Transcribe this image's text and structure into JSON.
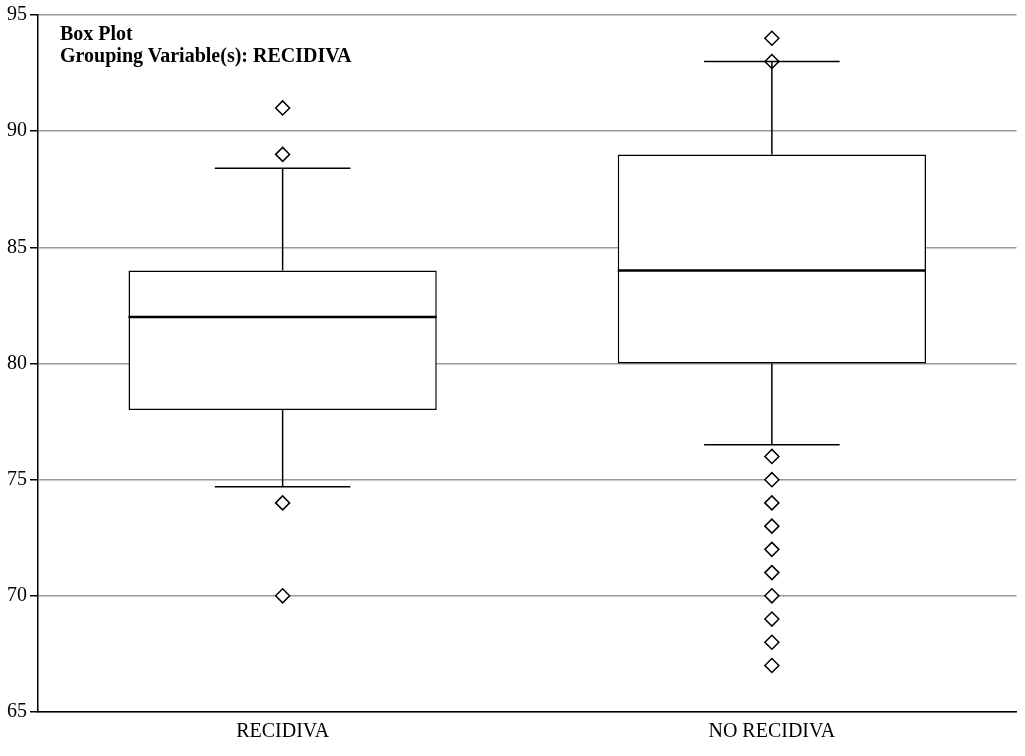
{
  "chart_data": {
    "type": "box",
    "title": "Box Plot",
    "subtitle": "Grouping Variable(s): RECIDIVA",
    "categories": [
      "RECIDIVA",
      "NO RECIDIVA"
    ],
    "boxes": [
      {
        "low": 74.7,
        "q1": 78,
        "median": 82,
        "q3": 84,
        "high": 88.4,
        "outliers": [
          91,
          89,
          74,
          70
        ]
      },
      {
        "low": 76.5,
        "q1": 80,
        "median": 84,
        "q3": 89,
        "high": 93,
        "outliers": [
          94,
          93,
          76,
          75,
          74,
          73,
          72,
          71,
          70,
          69,
          68,
          67
        ]
      }
    ],
    "ylim": [
      65,
      95
    ],
    "yticks": [
      65,
      70,
      75,
      80,
      85,
      90,
      95
    ],
    "grid": "y",
    "marker": "diamond",
    "legend": false
  }
}
